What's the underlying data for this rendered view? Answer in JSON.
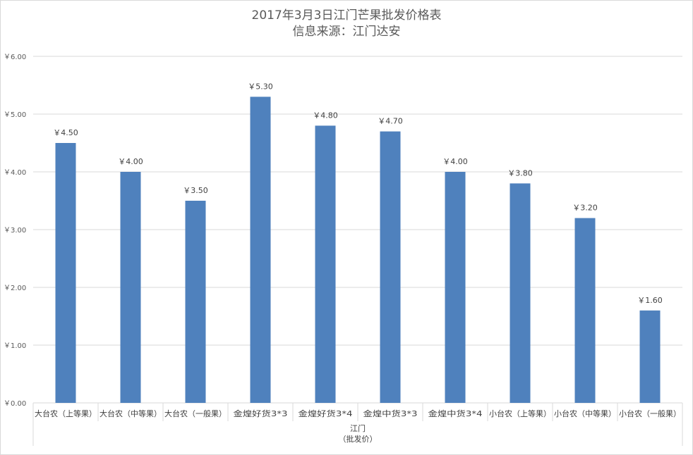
{
  "chart_data": {
    "type": "bar",
    "title": "2017年3月3日江门芒果批发价格表",
    "subtitle": "信息来源：江门达安",
    "categories": [
      "大台农（上等果）",
      "大台农（中等果）",
      "大台农（一般果）",
      "金煌好货3*3",
      "金煌好货3*4",
      "金煌中货3*3",
      "金煌中货3*4",
      "小台农（上等果）",
      "小台农（中等果）",
      "小台农（一般果）"
    ],
    "values": [
      4.5,
      4.0,
      3.5,
      5.3,
      4.8,
      4.7,
      4.0,
      3.8,
      3.2,
      1.6
    ],
    "value_labels": [
      "￥4.50",
      "￥4.00",
      "￥3.50",
      "￥5.30",
      "￥4.80",
      "￥4.70",
      "￥4.00",
      "￥3.80",
      "￥3.20",
      "￥1.60"
    ],
    "y_ticks": [
      0,
      1,
      2,
      3,
      4,
      5,
      6
    ],
    "y_tick_labels": [
      "￥0.00",
      "￥1.00",
      "￥2.00",
      "￥3.00",
      "￥4.00",
      "￥5.00",
      "￥6.00"
    ],
    "ylim": [
      0,
      6
    ],
    "group_label_line1": "江门",
    "group_label_line2": "（批发价）",
    "grid": true,
    "legend": "none",
    "bar_color": "#4f81bd"
  }
}
